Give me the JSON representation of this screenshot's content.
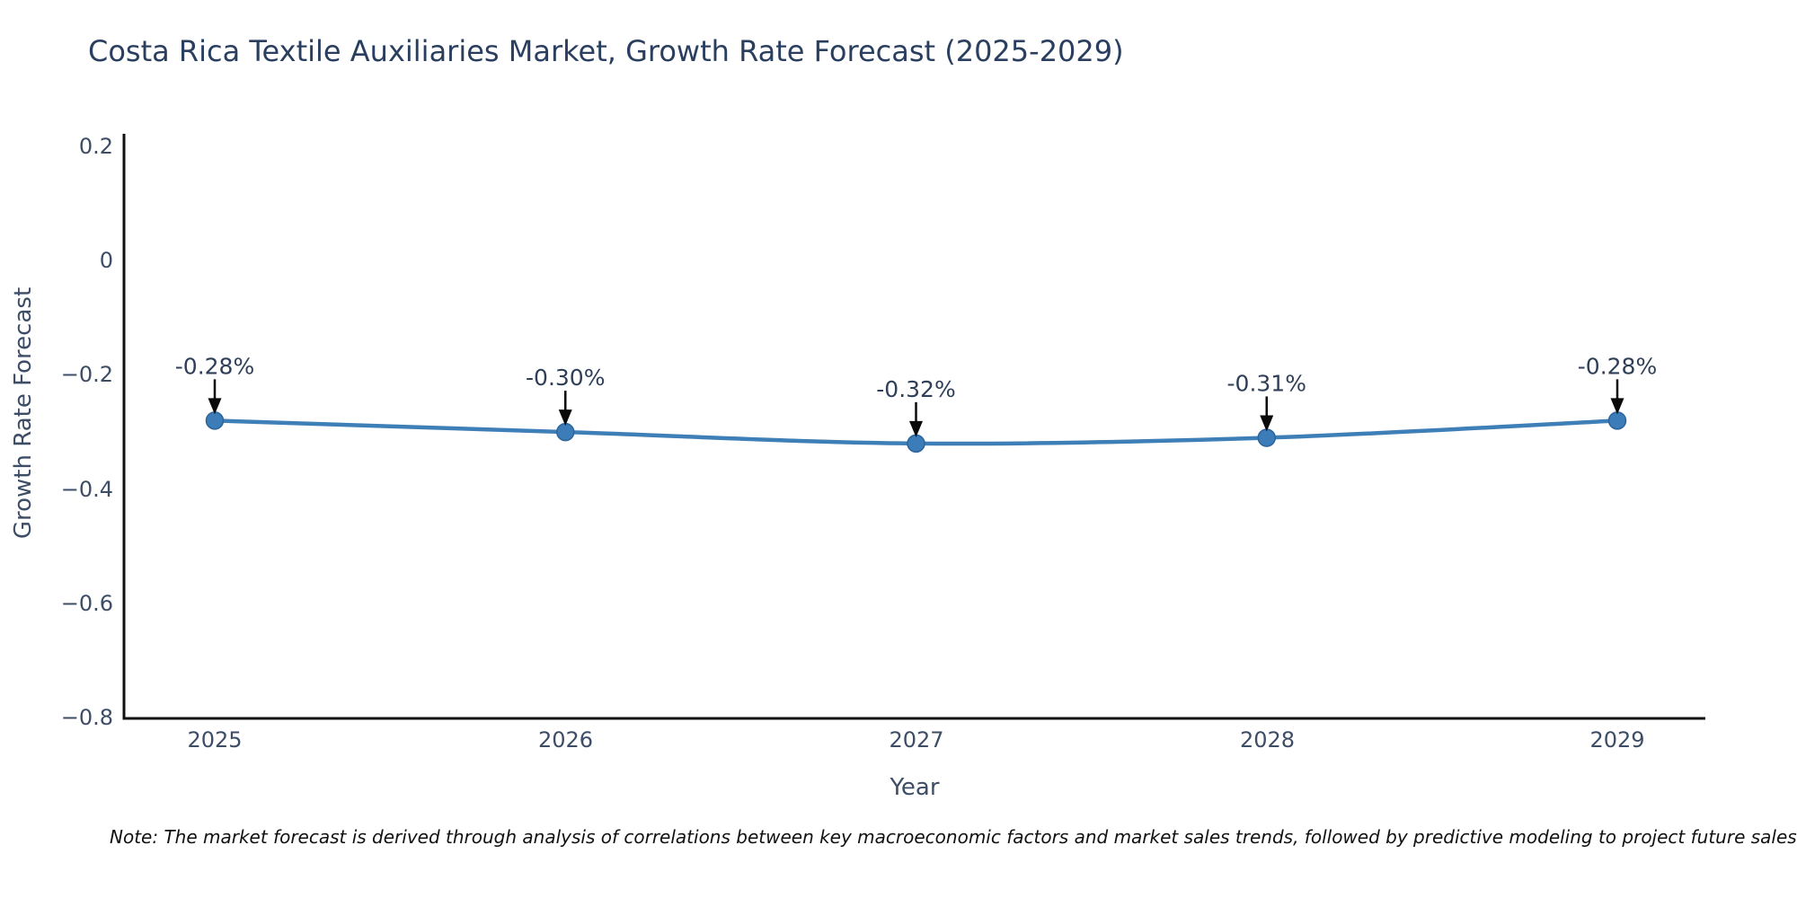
{
  "title": "Costa Rica Textile Auxiliaries Market, Growth Rate Forecast (2025-2029)",
  "chart_data": {
    "type": "line",
    "x": [
      2025,
      2026,
      2027,
      2028,
      2029
    ],
    "values": [
      -0.28,
      -0.3,
      -0.32,
      -0.31,
      -0.28
    ],
    "point_labels": [
      "-0.28%",
      "-0.30%",
      "-0.32%",
      "-0.31%",
      "-0.28%"
    ],
    "title": "Costa Rica Textile Auxiliaries Market, Growth Rate Forecast (2025-2029)",
    "xlabel": "Year",
    "ylabel": "Growth Rate Forecast",
    "yticks": [
      "0.2",
      "0",
      "−0.2",
      "−0.4",
      "−0.6",
      "−0.8"
    ],
    "ytick_values": [
      0.2,
      0,
      -0.2,
      -0.4,
      -0.6,
      -0.8
    ],
    "ylim": [
      -0.805,
      0.225
    ],
    "grid": false,
    "legend": "none",
    "line_color": "#3f7fb8",
    "marker_color": "#3c7cb8",
    "marker_edge_color": "#2d6499",
    "arrow_color": "#0a0a0a",
    "axis_color": "#101010",
    "title_color": "#2a3f5f"
  },
  "note": "Note: The market forecast is derived through analysis of correlations between key macroeconomic factors and market sales trends, followed by predictive modeling to project future sales"
}
